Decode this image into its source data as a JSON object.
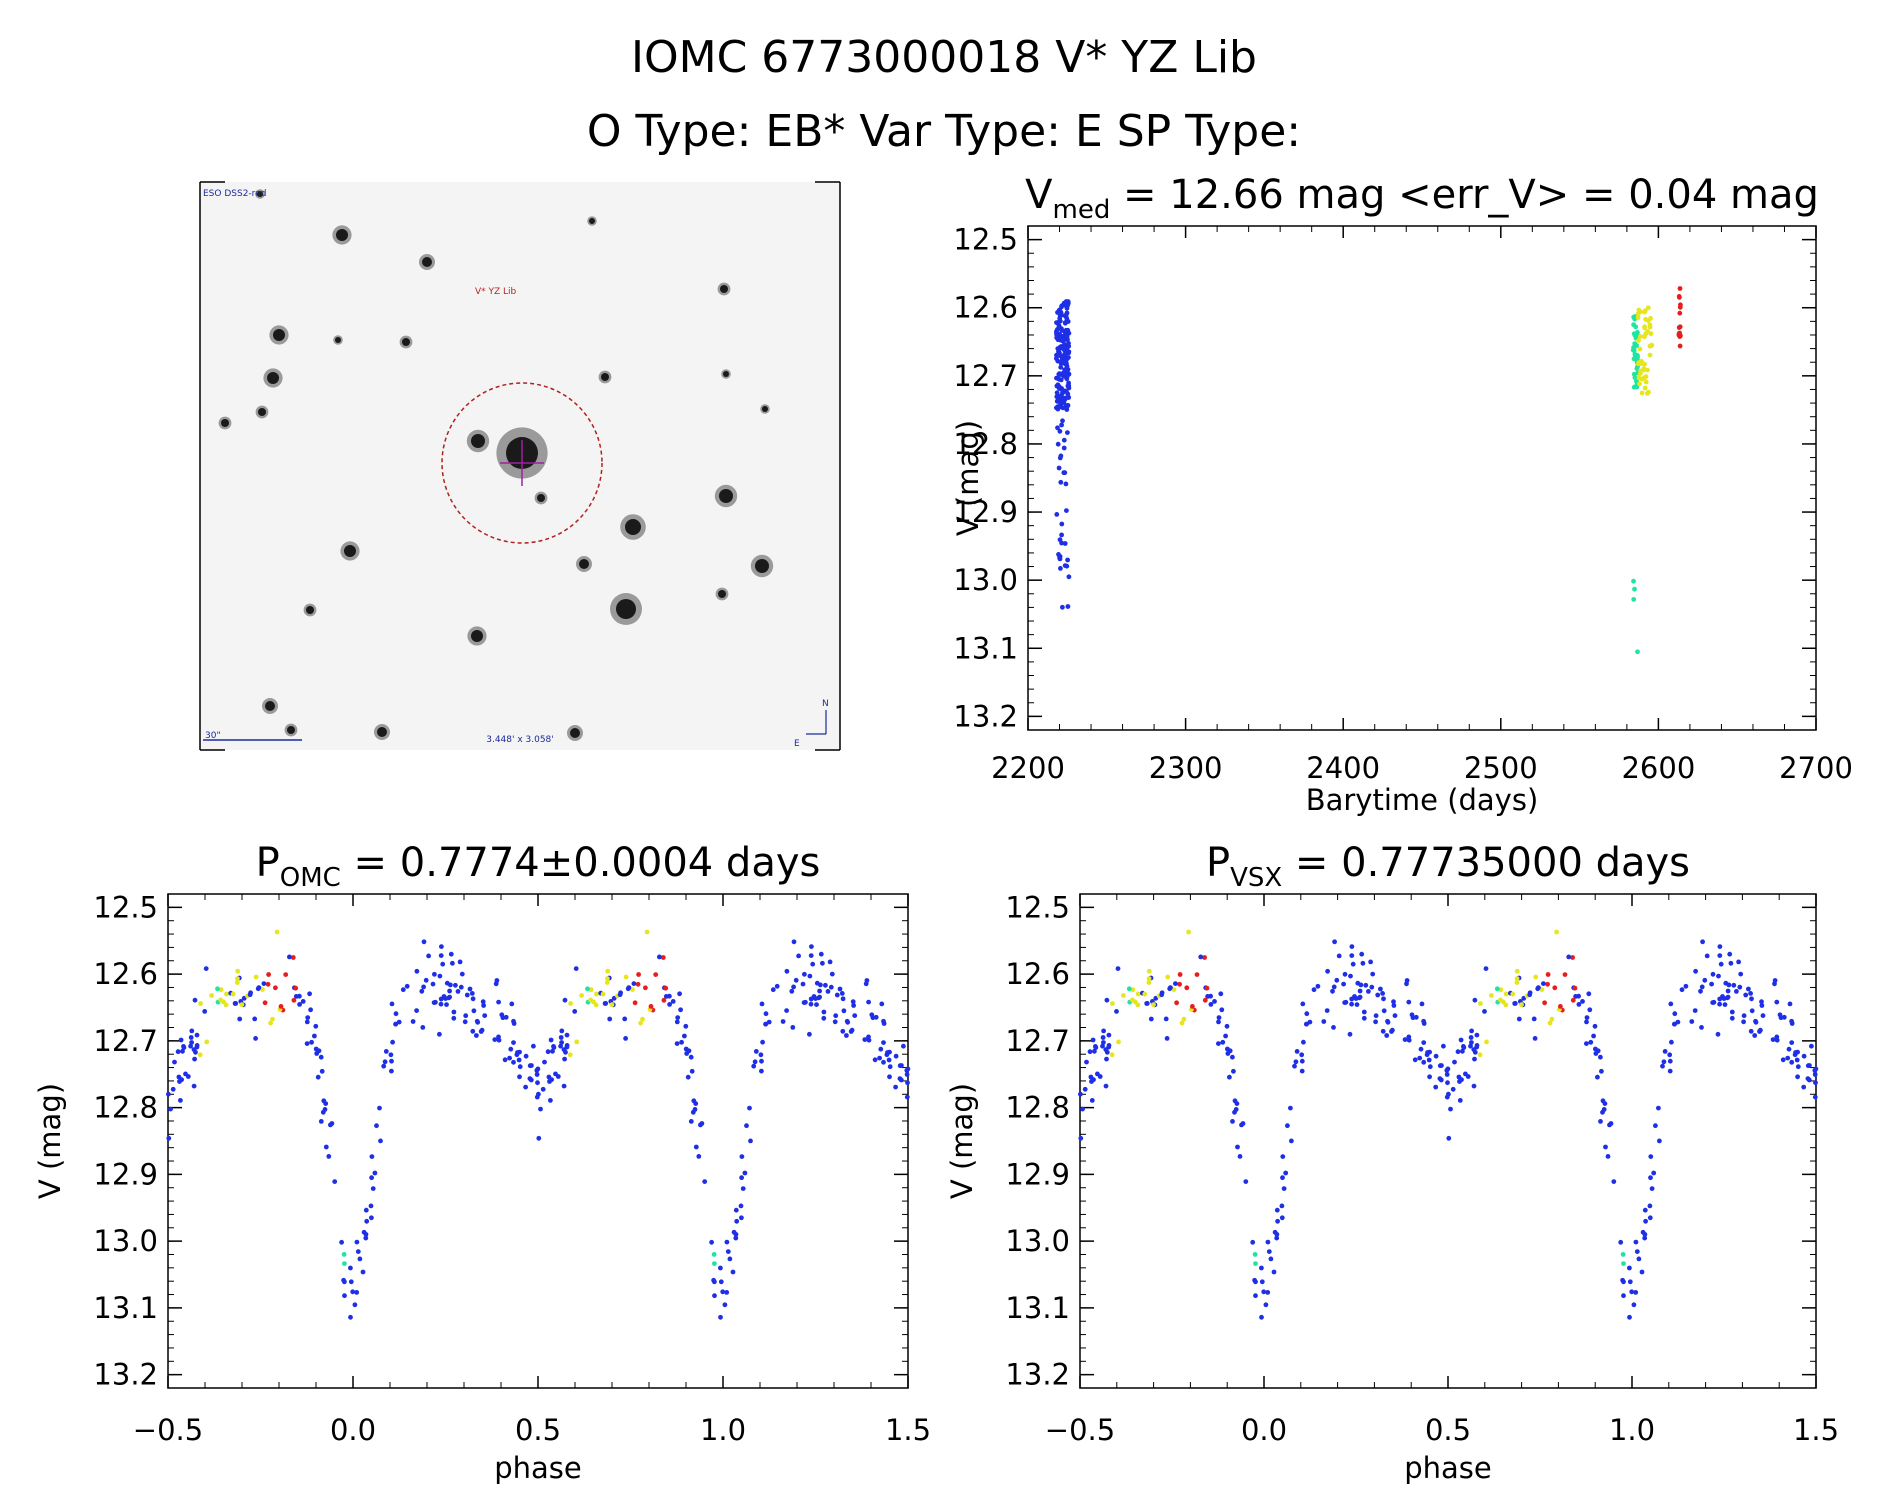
{
  "header": {
    "title_line1": "IOMC 6773000018   V* YZ Lib",
    "title_line2": "O Type: EB*  Var Type: E  SP Type:"
  },
  "sky_image": {
    "survey_label": "ESO DSS2-red",
    "target_label": "V* YZ Lib",
    "scale_label": "30\"",
    "fov_label": "3.448' x 3.058'",
    "north_label": "N",
    "east_label": "E"
  },
  "colors": {
    "blue": "#1f2fe6",
    "cyan": "#1ee6a0",
    "yellow": "#e6e61e",
    "red": "#e61e1e",
    "circle": "#b02020"
  },
  "chart_data": [
    {
      "id": "lightcurve",
      "type": "scatter",
      "title_prefix": "V",
      "title_sub": "med",
      "title_rest": " = 12.66 mag <err_V> = 0.04 mag",
      "xlabel": "Barytime (days)",
      "ylabel": "V (mag)",
      "xlim": [
        2200,
        2700
      ],
      "ylim": [
        13.22,
        12.48
      ],
      "x_ticks": [
        "2200",
        "2300",
        "2400",
        "2500",
        "2600",
        "2700"
      ],
      "y_ticks": [
        "12.5",
        "12.6",
        "12.7",
        "12.8",
        "12.9",
        "13.0",
        "13.1",
        "13.2"
      ],
      "series": [
        {
          "name": "blue",
          "color": "blue",
          "x_range": [
            2218,
            2226
          ],
          "v_range": [
            12.55,
            13.05
          ],
          "count": 210
        },
        {
          "name": "cyan",
          "color": "cyan",
          "x_range": [
            2584,
            2587
          ],
          "v_range": [
            12.6,
            13.12
          ],
          "count": 40
        },
        {
          "name": "yellow",
          "color": "yellow",
          "x_range": [
            2587,
            2596
          ],
          "v_range": [
            12.6,
            12.74
          ],
          "count": 45
        },
        {
          "name": "red",
          "color": "red",
          "x_range": [
            2613,
            2614
          ],
          "v_range": [
            12.57,
            12.66
          ],
          "count": 14
        }
      ]
    },
    {
      "id": "phase_omc",
      "type": "scatter",
      "title_prefix": "P",
      "title_sub": "OMC",
      "title_rest": " = 0.7774±0.0004 days",
      "xlabel": "phase",
      "ylabel": "V (mag)",
      "xlim": [
        -0.5,
        1.5
      ],
      "ylim": [
        13.22,
        12.48
      ],
      "x_ticks": [
        "−0.5",
        "0.0",
        "0.5",
        "1.0",
        "1.5"
      ],
      "y_ticks": [
        "12.5",
        "12.6",
        "12.7",
        "12.8",
        "12.9",
        "13.0",
        "13.1",
        "13.2"
      ],
      "light_curve_model": {
        "max_mag": 12.62,
        "min1_phase": 0.0,
        "min1_mag": 13.07,
        "min2_phase": 0.5,
        "min2_mag": 12.76
      }
    },
    {
      "id": "phase_vsx",
      "type": "scatter",
      "title_prefix": "P",
      "title_sub": "VSX",
      "title_rest": " = 0.77735000 days",
      "xlabel": "phase",
      "ylabel": "V (mag)",
      "xlim": [
        -0.5,
        1.5
      ],
      "ylim": [
        13.22,
        12.48
      ],
      "x_ticks": [
        "−0.5",
        "0.0",
        "0.5",
        "1.0",
        "1.5"
      ],
      "y_ticks": [
        "12.5",
        "12.6",
        "12.7",
        "12.8",
        "12.9",
        "13.0",
        "13.1",
        "13.2"
      ],
      "light_curve_model": {
        "max_mag": 12.62,
        "min1_phase": 0.0,
        "min1_mag": 13.07,
        "min2_phase": 0.5,
        "min2_mag": 12.76
      }
    }
  ]
}
